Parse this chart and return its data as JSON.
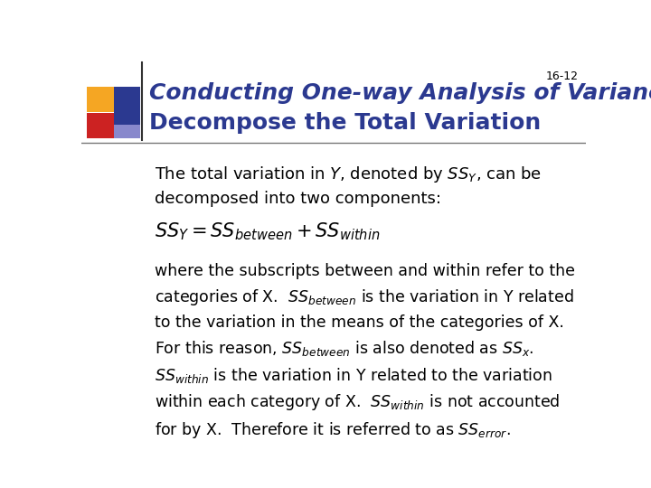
{
  "bg_color": "#ffffff",
  "header_line1": "Conducting One-way Analysis of Variance",
  "header_line2": "Decompose the Total Variation",
  "slide_number": "16-12",
  "header_text_color": "#2B3990",
  "body_color": "#000000",
  "line_color": "#555555",
  "yellow_sq": "#F5A623",
  "red_sq": "#CC2222",
  "blue_sq": "#2B3990",
  "lavender_sq": "#8888CC"
}
